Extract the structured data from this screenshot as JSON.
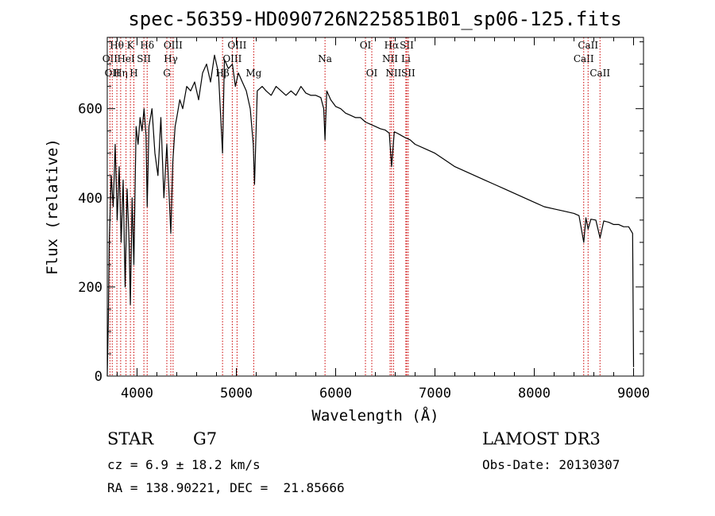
{
  "chart_data": {
    "type": "line",
    "title": "spec-56359-HD090726N225851B01_sp06-125.fits",
    "xlabel": "Wavelength (Å)",
    "ylabel": "Flux (relative)",
    "xlim": [
      3700,
      9100
    ],
    "ylim": [
      0,
      760
    ],
    "x_ticks": [
      4000,
      5000,
      6000,
      7000,
      8000,
      9000
    ],
    "y_ticks": [
      0,
      200,
      400,
      600
    ],
    "grid": false,
    "line_color": "#000000",
    "marker_color": "#cc0000",
    "series": [
      {
        "name": "spectrum",
        "x": [
          3700,
          3710,
          3720,
          3740,
          3760,
          3780,
          3800,
          3820,
          3840,
          3860,
          3880,
          3900,
          3920,
          3933,
          3950,
          3968,
          3990,
          4010,
          4030,
          4050,
          4070,
          4090,
          4102,
          4120,
          4150,
          4180,
          4210,
          4240,
          4270,
          4300,
          4320,
          4340,
          4360,
          4383,
          4400,
          4430,
          4460,
          4500,
          4540,
          4580,
          4620,
          4660,
          4700,
          4740,
          4780,
          4820,
          4861,
          4880,
          4920,
          4960,
          4990,
          5020,
          5060,
          5100,
          5140,
          5170,
          5183,
          5210,
          5260,
          5300,
          5350,
          5400,
          5450,
          5500,
          5550,
          5600,
          5650,
          5700,
          5750,
          5800,
          5850,
          5880,
          5893,
          5910,
          5950,
          6000,
          6050,
          6100,
          6150,
          6200,
          6250,
          6300,
          6350,
          6400,
          6450,
          6500,
          6540,
          6563,
          6590,
          6620,
          6660,
          6700,
          6750,
          6800,
          6900,
          7000,
          7100,
          7200,
          7300,
          7400,
          7500,
          7600,
          7700,
          7800,
          7900,
          8000,
          8100,
          8200,
          8300,
          8400,
          8450,
          8498,
          8520,
          8542,
          8570,
          8620,
          8662,
          8700,
          8750,
          8800,
          8850,
          8900,
          8950,
          8990,
          9000
        ],
        "y": [
          0,
          120,
          300,
          450,
          380,
          520,
          350,
          470,
          300,
          440,
          200,
          420,
          300,
          160,
          400,
          250,
          560,
          520,
          580,
          550,
          600,
          540,
          380,
          560,
          600,
          500,
          450,
          580,
          400,
          520,
          420,
          320,
          480,
          560,
          580,
          620,
          600,
          650,
          640,
          660,
          620,
          680,
          700,
          660,
          720,
          680,
          500,
          710,
          690,
          700,
          650,
          680,
          660,
          640,
          600,
          520,
          430,
          640,
          650,
          640,
          630,
          650,
          640,
          630,
          640,
          630,
          650,
          635,
          630,
          630,
          625,
          600,
          530,
          640,
          620,
          605,
          600,
          590,
          585,
          580,
          580,
          570,
          565,
          560,
          555,
          552,
          545,
          470,
          548,
          545,
          540,
          535,
          530,
          520,
          510,
          500,
          485,
          470,
          460,
          450,
          440,
          430,
          420,
          410,
          400,
          390,
          380,
          375,
          370,
          365,
          360,
          300,
          355,
          330,
          352,
          350,
          310,
          348,
          345,
          340,
          340,
          335,
          335,
          320,
          20
        ]
      }
    ],
    "line_markers": [
      {
        "wl": 3727,
        "label": "OII",
        "row": 2
      },
      {
        "wl": 3750,
        "label": "OII",
        "row": 3
      },
      {
        "wl": 3797,
        "label": "Hθ",
        "row": 1
      },
      {
        "wl": 3835,
        "label": "Hη",
        "row": 3
      },
      {
        "wl": 3889,
        "label": "HeI",
        "row": 2
      },
      {
        "wl": 3933,
        "label": "K",
        "row": 1
      },
      {
        "wl": 3968,
        "label": "H",
        "row": 3
      },
      {
        "wl": 4069,
        "label": "SII",
        "row": 2
      },
      {
        "wl": 4102,
        "label": "Hδ",
        "row": 1
      },
      {
        "wl": 4300,
        "label": "G",
        "row": 3
      },
      {
        "wl": 4340,
        "label": "Hγ",
        "row": 2
      },
      {
        "wl": 4363,
        "label": "OIII",
        "row": 1
      },
      {
        "wl": 4861,
        "label": "Hβ",
        "row": 3
      },
      {
        "wl": 4959,
        "label": "OIII",
        "row": 2
      },
      {
        "wl": 5007,
        "label": "OIII",
        "row": 1
      },
      {
        "wl": 5175,
        "label": "Mg",
        "row": 3
      },
      {
        "wl": 5893,
        "label": "Na",
        "row": 2
      },
      {
        "wl": 6300,
        "label": "OI",
        "row": 1
      },
      {
        "wl": 6364,
        "label": "OI",
        "row": 3
      },
      {
        "wl": 6548,
        "label": "NII",
        "row": 2
      },
      {
        "wl": 6563,
        "label": "Hα",
        "row": 1
      },
      {
        "wl": 6583,
        "label": "NII",
        "row": 3
      },
      {
        "wl": 6707,
        "label": "Li",
        "row": 2
      },
      {
        "wl": 6716,
        "label": "SII",
        "row": 1
      },
      {
        "wl": 6731,
        "label": "SII",
        "row": 3
      },
      {
        "wl": 8498,
        "label": "CaII",
        "row": 2
      },
      {
        "wl": 8542,
        "label": "CaII",
        "row": 1
      },
      {
        "wl": 8662,
        "label": "CaII",
        "row": 3
      }
    ]
  },
  "info": {
    "object_class": "STAR",
    "subclass": "G7",
    "cz": "cz = 6.9 ± 18.2 km/s",
    "coords": "RA = 138.90221, DEC =  21.85666",
    "survey": "LAMOST DR3",
    "obs_date": "Obs-Date: 20130307"
  }
}
